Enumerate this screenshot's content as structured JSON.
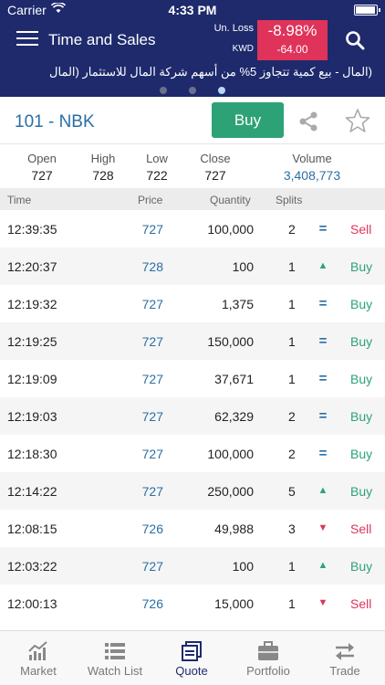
{
  "status_bar": {
    "carrier": "Carrier",
    "time": "4:33 PM"
  },
  "nav": {
    "title": "Time and Sales",
    "loss_label": "Un. Loss",
    "currency": "KWD",
    "change_pct": "-8.98%",
    "change_value": "-64.00"
  },
  "ticker": {
    "text": "(المال - بيع كمية تتجاوز 5% من أسهم شركة المال للاستثمار (المال",
    "page_count": 3,
    "active_page": 3
  },
  "symbol": {
    "name": "101 - NBK",
    "buy_label": "Buy"
  },
  "ohlc": [
    {
      "label": "Open",
      "value": "727"
    },
    {
      "label": "High",
      "value": "728"
    },
    {
      "label": "Low",
      "value": "722"
    },
    {
      "label": "Close",
      "value": "727"
    },
    {
      "label": "Volume",
      "value": "3,408,773"
    }
  ],
  "table_header": {
    "time": "Time",
    "price": "Price",
    "quantity": "Quantity",
    "splits": "Splits"
  },
  "trades": [
    {
      "time": "12:39:35",
      "price": "727",
      "quantity": "100,000",
      "splits": "2",
      "indicator": "equal",
      "side": "Sell"
    },
    {
      "time": "12:20:37",
      "price": "728",
      "quantity": "100",
      "splits": "1",
      "indicator": "up",
      "side": "Buy"
    },
    {
      "time": "12:19:32",
      "price": "727",
      "quantity": "1,375",
      "splits": "1",
      "indicator": "equal",
      "side": "Buy"
    },
    {
      "time": "12:19:25",
      "price": "727",
      "quantity": "150,000",
      "splits": "1",
      "indicator": "equal",
      "side": "Buy"
    },
    {
      "time": "12:19:09",
      "price": "727",
      "quantity": "37,671",
      "splits": "1",
      "indicator": "equal",
      "side": "Buy"
    },
    {
      "time": "12:19:03",
      "price": "727",
      "quantity": "62,329",
      "splits": "2",
      "indicator": "equal",
      "side": "Buy"
    },
    {
      "time": "12:18:30",
      "price": "727",
      "quantity": "100,000",
      "splits": "2",
      "indicator": "equal",
      "side": "Buy"
    },
    {
      "time": "12:14:22",
      "price": "727",
      "quantity": "250,000",
      "splits": "5",
      "indicator": "up",
      "side": "Buy"
    },
    {
      "time": "12:08:15",
      "price": "726",
      "quantity": "49,988",
      "splits": "3",
      "indicator": "down",
      "side": "Sell"
    },
    {
      "time": "12:03:22",
      "price": "727",
      "quantity": "100",
      "splits": "1",
      "indicator": "up",
      "side": "Buy"
    },
    {
      "time": "12:00:13",
      "price": "726",
      "quantity": "15,000",
      "splits": "1",
      "indicator": "down",
      "side": "Sell"
    }
  ],
  "tabs": [
    {
      "label": "Market",
      "icon": "market-chart-icon",
      "active": false
    },
    {
      "label": "Watch List",
      "icon": "list-icon",
      "active": false
    },
    {
      "label": "Quote",
      "icon": "quote-icon",
      "active": true
    },
    {
      "label": "Portfolio",
      "icon": "briefcase-icon",
      "active": false
    },
    {
      "label": "Trade",
      "icon": "trade-arrows-icon",
      "active": false
    }
  ],
  "colors": {
    "nav_bg": "#1e2a6c",
    "loss_red": "#e0335a",
    "buy_green": "#2ea277",
    "link_blue": "#2a6fa5"
  }
}
